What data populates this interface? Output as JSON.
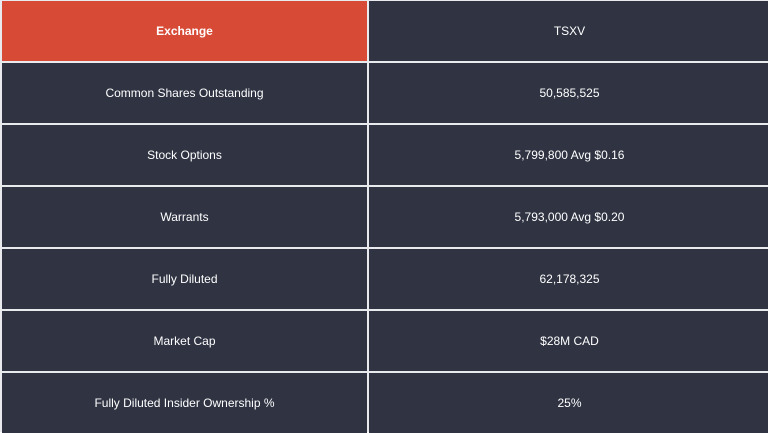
{
  "table": {
    "rows": [
      {
        "label": "Exchange",
        "value": "TSXV"
      },
      {
        "label": "Common Shares Outstanding",
        "value": "50,585,525"
      },
      {
        "label": "Stock Options",
        "value": "5,799,800 Avg $0.16"
      },
      {
        "label": "Warrants",
        "value": "5,793,000 Avg $0.20"
      },
      {
        "label": "Fully Diluted",
        "value": "62,178,325"
      },
      {
        "label": "Market Cap",
        "value": "$28M CAD"
      },
      {
        "label": "Fully Diluted Insider Ownership %",
        "value": "25%"
      }
    ]
  },
  "colors": {
    "header_accent": "#d74a35",
    "cell_background": "#2f3342",
    "grid_lines": "#e9eaee"
  }
}
